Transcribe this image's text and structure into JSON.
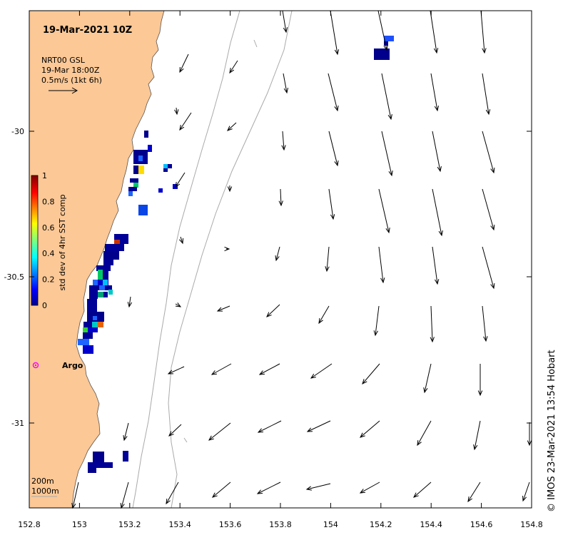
{
  "title": "19-Mar-2021 10Z",
  "current_source": {
    "line1": "NRT00 GSL",
    "line2": "19-Mar 18:00Z",
    "line3": "0.5m/s (1kt 6h)"
  },
  "colorbar": {
    "label": "std dev of 4hr SST comp",
    "ticks": [
      "0",
      "0.2",
      "0.4",
      "0.6",
      "0.8",
      "1"
    ],
    "colormap": "jet"
  },
  "x_axis": {
    "ticks": [
      "152.8",
      "153",
      "153.2",
      "153.4",
      "153.6",
      "153.8",
      "154",
      "154.2",
      "154.4",
      "154.6",
      "154.8"
    ]
  },
  "y_axis": {
    "ticks": [
      "-30",
      "-30.5",
      "-31"
    ]
  },
  "argo": {
    "label": "Argo",
    "color": "#ff00ff",
    "lon": 152.83,
    "lat": -30.81
  },
  "isobaths": {
    "line1": "200m",
    "line2": "1000m"
  },
  "credit": "© IMOS 23-Mar-2021 13:54 Hobart",
  "colors": {
    "land": "#fbc896",
    "coast": "#666666",
    "isobath": "#aaaaaa"
  }
}
